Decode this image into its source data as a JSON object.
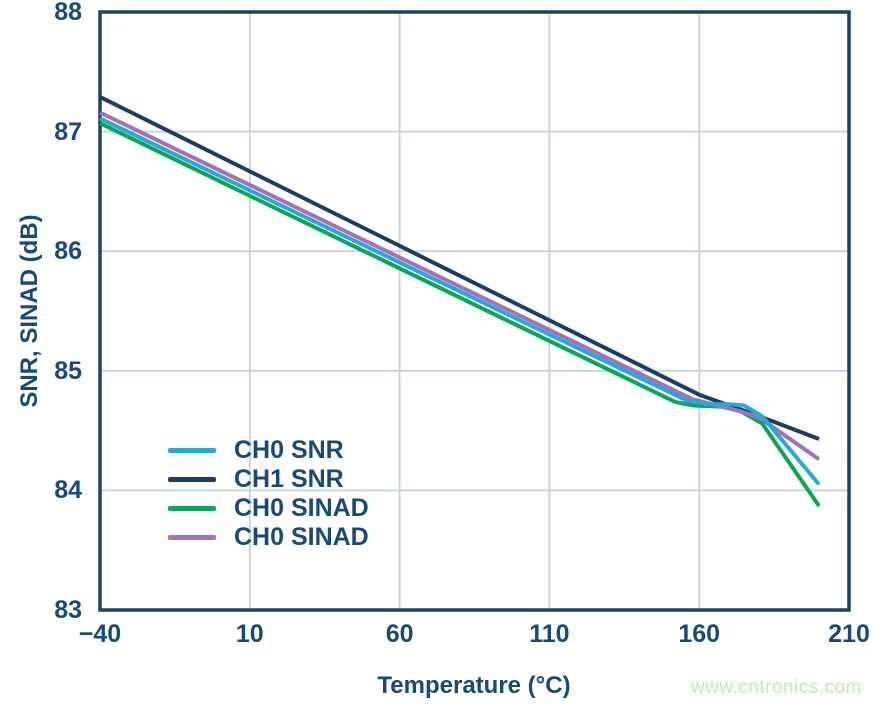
{
  "figure": {
    "watermark_text": "www.cntronics.com"
  },
  "colors": {
    "axis_border": "#18436B",
    "text": "#17497A",
    "grid": "#C3D2DF",
    "watermark": "#C2E7BE",
    "background": "#FFFFFF"
  },
  "chart_data": {
    "type": "line",
    "title": "",
    "xlabel": "Temperature (°C)",
    "ylabel": "SNR, SINAD (dB)",
    "xlim": [
      -40,
      210
    ],
    "ylim": [
      83,
      88
    ],
    "x_ticks": [
      -40,
      10,
      60,
      110,
      160,
      210
    ],
    "x_tick_labels": [
      "−40",
      "10",
      "60",
      "110",
      "160",
      "210"
    ],
    "y_ticks": [
      83,
      84,
      85,
      86,
      87,
      88
    ],
    "y_tick_labels": [
      "83",
      "84",
      "85",
      "86",
      "87",
      "88"
    ],
    "grid": true,
    "legend_position": "inside lower-left",
    "series": [
      {
        "name": "CH0 SNR",
        "color": "#25A9DA",
        "points": [
          [
            -40,
            87.11
          ],
          [
            156,
            84.75
          ],
          [
            163,
            84.72
          ],
          [
            170,
            84.72
          ],
          [
            175,
            84.71
          ],
          [
            181,
            84.62
          ],
          [
            200,
            84.05
          ]
        ]
      },
      {
        "name": "CH1 SNR",
        "color": "#1C3D63",
        "points": [
          [
            -40,
            87.29
          ],
          [
            160,
            84.8
          ],
          [
            170,
            84.71
          ],
          [
            178,
            84.64
          ],
          [
            200,
            84.43
          ]
        ]
      },
      {
        "name": "CH0 SINAD",
        "color": "#0BA553",
        "points": [
          [
            -40,
            87.07
          ],
          [
            152,
            84.74
          ],
          [
            158,
            84.71
          ],
          [
            168,
            84.7
          ],
          [
            174,
            84.66
          ],
          [
            181,
            84.56
          ],
          [
            200,
            83.87
          ]
        ]
      },
      {
        "name": "CH0 SINAD",
        "color": "#A471B8",
        "points": [
          [
            -40,
            87.16
          ],
          [
            158,
            84.76
          ],
          [
            166,
            84.71
          ],
          [
            174,
            84.66
          ],
          [
            180,
            84.61
          ],
          [
            200,
            84.26
          ]
        ]
      }
    ]
  }
}
